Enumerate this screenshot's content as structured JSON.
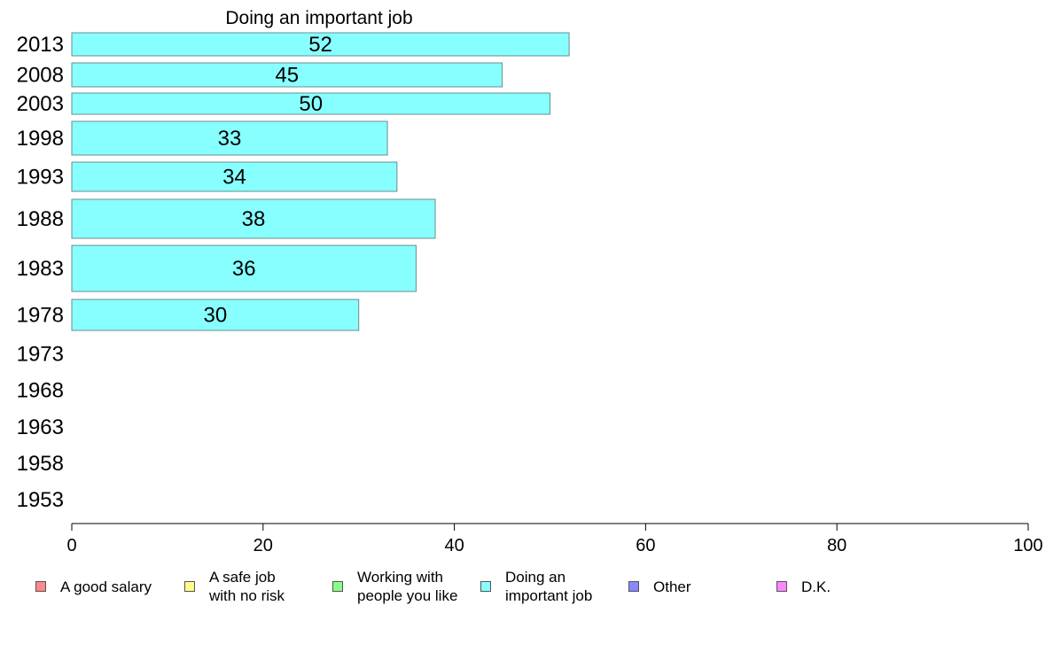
{
  "chart_data": {
    "type": "bar",
    "orientation": "horizontal",
    "title": "Doing an important job",
    "categories": [
      "2013",
      "2008",
      "2003",
      "1998",
      "1993",
      "1988",
      "1983",
      "1978",
      "1973",
      "1968",
      "1963",
      "1958",
      "1953"
    ],
    "values": [
      52,
      45,
      50,
      33,
      34,
      38,
      36,
      30,
      null,
      null,
      null,
      null,
      null
    ],
    "data_labels": [
      "52",
      "45",
      "50",
      "33",
      "34",
      "38",
      "36",
      "30",
      "",
      "",
      "",
      "",
      ""
    ],
    "xlim": [
      0,
      100
    ],
    "xticks": [
      "0",
      "20",
      "40",
      "60",
      "80",
      "100"
    ],
    "xlabel": "",
    "ylabel": "",
    "grid": false,
    "bar_color": "#88ffff",
    "bar_edge": "#6a8c8c",
    "legend": [
      {
        "label": "A good salary",
        "color": "#ff8888"
      },
      {
        "label": "A safe job\nwith no risk",
        "color": "#ffff88"
      },
      {
        "label": "Working with\npeople you like",
        "color": "#88ff88"
      },
      {
        "label": "Doing an\nimportant job",
        "color": "#88ffff"
      },
      {
        "label": "Other",
        "color": "#8888ff"
      },
      {
        "label": "D.K.",
        "color": "#ff88ff"
      }
    ]
  }
}
